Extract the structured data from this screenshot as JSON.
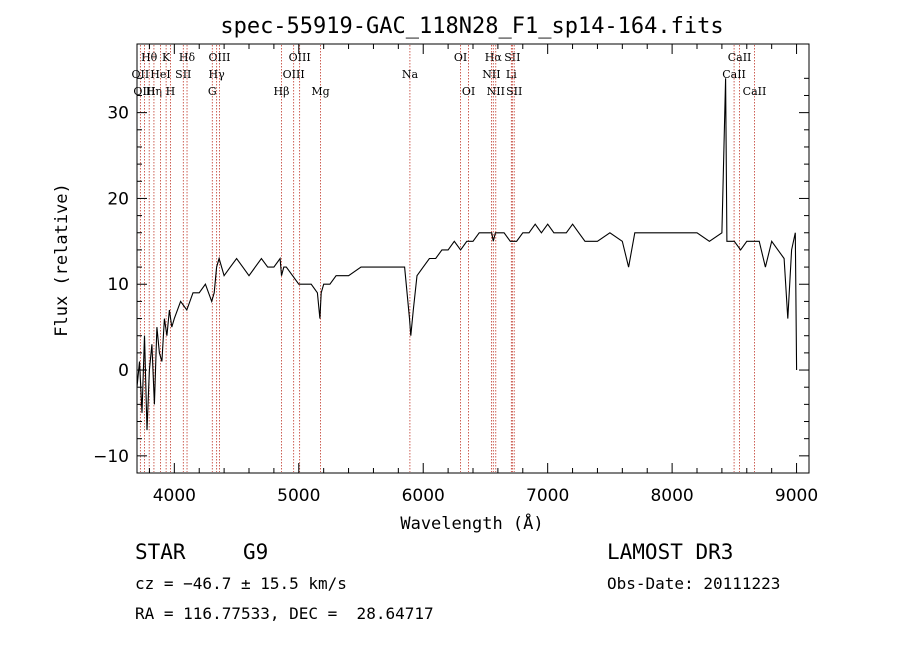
{
  "chart_data": {
    "type": "line",
    "title": "spec-55919-GAC_118N28_F1_sp14-164.fits",
    "xlabel": "Wavelength (Å)",
    "ylabel": "Flux (relative)",
    "xlim": [
      3700,
      9100
    ],
    "ylim": [
      -12,
      38
    ],
    "x_ticks": [
      4000,
      5000,
      6000,
      7000,
      8000,
      9000
    ],
    "y_ticks": [
      -10,
      0,
      10,
      20,
      30
    ],
    "series": [
      {
        "x": [
          3700,
          3720,
          3740,
          3760,
          3780,
          3800,
          3820,
          3840,
          3860,
          3880,
          3900,
          3920,
          3940,
          3960,
          3980,
          4000,
          4050,
          4100,
          4150,
          4200,
          4250,
          4300,
          4320,
          4340,
          4360,
          4400,
          4450,
          4500,
          4550,
          4600,
          4650,
          4700,
          4750,
          4800,
          4850,
          4861,
          4880,
          4900,
          4950,
          5000,
          5050,
          5100,
          5150,
          5170,
          5180,
          5200,
          5250,
          5300,
          5400,
          5500,
          5600,
          5700,
          5800,
          5850,
          5890,
          5900,
          5920,
          5950,
          6000,
          6050,
          6100,
          6150,
          6200,
          6250,
          6300,
          6350,
          6400,
          6450,
          6500,
          6550,
          6563,
          6580,
          6600,
          6650,
          6700,
          6750,
          6800,
          6850,
          6900,
          6950,
          7000,
          7050,
          7100,
          7150,
          7200,
          7250,
          7300,
          7400,
          7500,
          7600,
          7650,
          7700,
          7800,
          7900,
          8000,
          8100,
          8200,
          8300,
          8400,
          8430,
          8440,
          8450,
          8500,
          8550,
          8600,
          8650,
          8700,
          8750,
          8800,
          8850,
          8900,
          8930,
          8960,
          8990,
          9000
        ],
        "y": [
          -2,
          1,
          -5,
          4,
          -7,
          0,
          3,
          -4,
          5,
          2,
          1,
          6,
          4,
          7,
          5,
          6,
          8,
          7,
          9,
          9,
          10,
          8,
          9,
          12,
          13,
          11,
          12,
          13,
          12,
          11,
          12,
          13,
          12,
          12,
          13,
          11,
          12,
          12,
          11,
          10,
          10,
          10,
          9,
          6,
          9,
          10,
          10,
          11,
          11,
          12,
          12,
          12,
          12,
          12,
          6,
          4,
          7,
          11,
          12,
          13,
          13,
          14,
          14,
          15,
          14,
          15,
          15,
          16,
          16,
          16,
          15,
          16,
          16,
          16,
          15,
          15,
          16,
          16,
          17,
          16,
          17,
          16,
          16,
          16,
          17,
          16,
          15,
          15,
          16,
          15,
          12,
          16,
          16,
          16,
          16,
          16,
          16,
          15,
          16,
          34,
          15,
          15,
          15,
          14,
          15,
          15,
          15,
          12,
          15,
          14,
          13,
          6,
          14,
          16,
          0
        ]
      }
    ],
    "line_markers": [
      {
        "label": "Hθ",
        "x": 3798,
        "row": 0
      },
      {
        "label": "OII",
        "x": 3727,
        "row": 1
      },
      {
        "label": "OIII",
        "x": 3760,
        "row": 2
      },
      {
        "label": "Hη",
        "x": 3836,
        "row": 2
      },
      {
        "label": "K",
        "x": 3934,
        "row": 0
      },
      {
        "label": "HeI",
        "x": 3889,
        "row": 1
      },
      {
        "label": "H",
        "x": 3969,
        "row": 2
      },
      {
        "label": "Hδ",
        "x": 4102,
        "row": 0
      },
      {
        "label": "SII",
        "x": 4072,
        "row": 1
      },
      {
        "label": "OIII",
        "x": 4363,
        "row": 0
      },
      {
        "label": "Hγ",
        "x": 4340,
        "row": 1
      },
      {
        "label": "G",
        "x": 4305,
        "row": 2
      },
      {
        "label": "OIII",
        "x": 5007,
        "row": 0
      },
      {
        "label": "OIII",
        "x": 4959,
        "row": 1
      },
      {
        "label": "Hβ",
        "x": 4861,
        "row": 2
      },
      {
        "label": "Mg",
        "x": 5175,
        "row": 2
      },
      {
        "label": "Na",
        "x": 5893,
        "row": 1
      },
      {
        "label": "OI",
        "x": 6300,
        "row": 0
      },
      {
        "label": "OI",
        "x": 6364,
        "row": 2
      },
      {
        "label": "Hα",
        "x": 6563,
        "row": 0
      },
      {
        "label": "NII",
        "x": 6548,
        "row": 1
      },
      {
        "label": "NII",
        "x": 6583,
        "row": 2
      },
      {
        "label": "SII",
        "x": 6716,
        "row": 0
      },
      {
        "label": "Li",
        "x": 6708,
        "row": 1
      },
      {
        "label": "SII",
        "x": 6731,
        "row": 2
      },
      {
        "label": "CaII",
        "x": 8542,
        "row": 0
      },
      {
        "label": "CaII",
        "x": 8498,
        "row": 1
      },
      {
        "label": "CaII",
        "x": 8662,
        "row": 2
      }
    ]
  },
  "info": {
    "object_class": "STAR",
    "subclass": "G9",
    "survey": "LAMOST DR3",
    "cz": "cz = −46.7 ± 15.5 km/s",
    "obs_date": "Obs-Date: 20111223",
    "coords": "RA = 116.77533, DEC =  28.64717"
  }
}
